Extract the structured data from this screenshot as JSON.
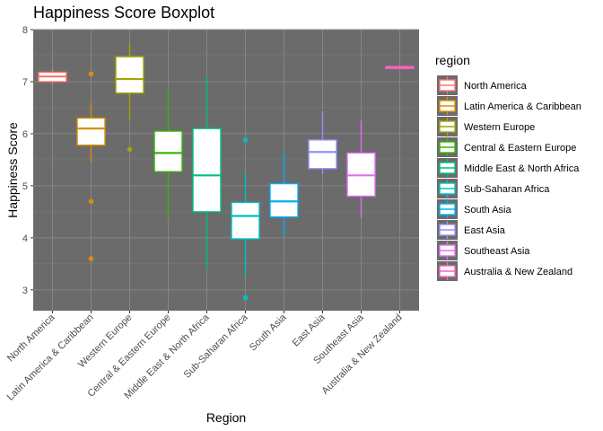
{
  "chart_data": {
    "type": "boxplot",
    "title": "Happiness Score Boxplot",
    "xlabel": "Region",
    "ylabel": "Happiness Score",
    "ylim": [
      2.6,
      8.0
    ],
    "yticks": [
      3,
      4,
      5,
      6,
      7,
      8
    ],
    "grid": true,
    "panel_background": "#6b6b6b",
    "legend": {
      "title": "region",
      "position": "right"
    },
    "categories": [
      "North America",
      "Latin America & Caribbean",
      "Western Europe",
      "Central & Eastern Europe",
      "Middle East & North Africa",
      "Sub-Saharan Africa",
      "South Asia",
      "East Asia",
      "Southeast Asia",
      "Australia & New Zealand"
    ],
    "colors": [
      "#f8766d",
      "#d89000",
      "#a3a500",
      "#39b600",
      "#00bf7d",
      "#00bfc4",
      "#00b0f6",
      "#9590ff",
      "#e76bf3",
      "#ff62bc"
    ],
    "boxes": [
      {
        "min": 6.95,
        "q1": 7.0,
        "median": 7.1,
        "q3": 7.18,
        "max": 7.25,
        "outliers": []
      },
      {
        "min": 5.45,
        "q1": 5.78,
        "median": 6.1,
        "q3": 6.3,
        "max": 6.6,
        "outliers": [
          7.15,
          4.7,
          3.6
        ]
      },
      {
        "min": 6.25,
        "q1": 6.78,
        "median": 7.05,
        "q3": 7.48,
        "max": 7.75,
        "outliers": [
          5.7
        ]
      },
      {
        "min": 4.35,
        "q1": 5.27,
        "median": 5.63,
        "q3": 6.05,
        "max": 6.85,
        "outliers": []
      },
      {
        "min": 3.4,
        "q1": 4.5,
        "median": 5.2,
        "q3": 6.1,
        "max": 7.1,
        "outliers": []
      },
      {
        "min": 3.25,
        "q1": 3.98,
        "median": 4.42,
        "q3": 4.68,
        "max": 5.25,
        "outliers": [
          5.88,
          2.85
        ]
      },
      {
        "min": 4.03,
        "q1": 4.4,
        "median": 4.7,
        "q3": 5.04,
        "max": 5.65,
        "outliers": []
      },
      {
        "min": 5.22,
        "q1": 5.33,
        "median": 5.65,
        "q3": 5.88,
        "max": 6.43,
        "outliers": []
      },
      {
        "min": 4.38,
        "q1": 4.8,
        "median": 5.2,
        "q3": 5.63,
        "max": 6.25,
        "outliers": []
      },
      {
        "min": 7.25,
        "q1": 7.27,
        "median": 7.28,
        "q3": 7.29,
        "max": 7.3,
        "outliers": []
      }
    ]
  }
}
